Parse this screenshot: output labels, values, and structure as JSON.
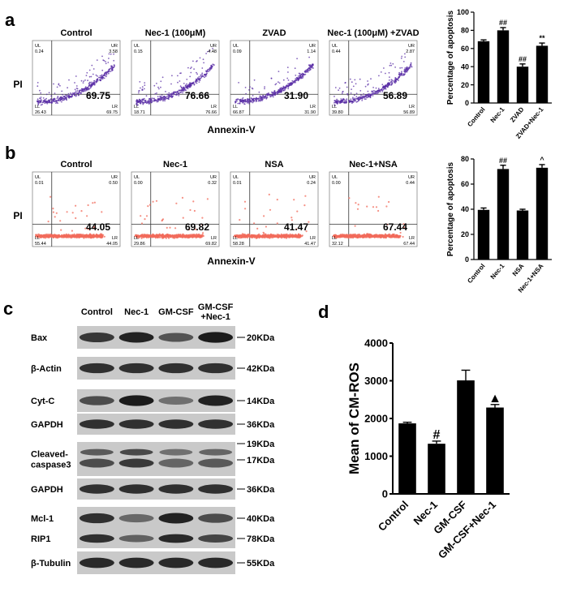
{
  "panels": {
    "a": {
      "letter": "a",
      "flow": {
        "titles": [
          "Control",
          "Nec-1 (100μM)",
          "ZVAD",
          "Nec-1 (100μM) +ZVAD"
        ],
        "ul": [
          "0.24",
          "0.15",
          "0.09",
          "0.44"
        ],
        "ur": [
          "3.58",
          "4.48",
          "1.14",
          "2.87"
        ],
        "ll": [
          "26.43",
          "18.71",
          "66.87",
          "39.80"
        ],
        "lr": [
          "69.75",
          "76.66",
          "31.90",
          "56.89"
        ],
        "big": [
          "69.75",
          "76.66",
          "31.90",
          "56.89"
        ],
        "dot_color": "#5a2ea6",
        "ylabel": "PI",
        "xlabel": "Annexin-V",
        "ul_label": "UL",
        "ur_label": "UR",
        "ll_label": "LL",
        "lr_label": "LR"
      }
    },
    "b": {
      "letter": "b",
      "flow": {
        "titles": [
          "Control",
          "Nec-1",
          "NSA",
          "Nec-1+NSA"
        ],
        "ul": [
          "0.01",
          "0.00",
          "0.01",
          "0.00"
        ],
        "ur": [
          "0.50",
          "0.32",
          "0.24",
          "0.44"
        ],
        "ll": [
          "55.44",
          "29.86",
          "58.28",
          "32.12"
        ],
        "lr": [
          "44.05",
          "69.82",
          "41.47",
          "67.44"
        ],
        "big": [
          "44.05",
          "69.82",
          "41.47",
          "67.44"
        ],
        "dot_color": "#f26b5b",
        "ylabel": "PI",
        "xlabel": "Annexin-V",
        "ul_label": "UL",
        "ur_label": "UR",
        "ll_label": "LL",
        "lr_label": "LR"
      }
    },
    "c": {
      "letter": "c",
      "lanes": [
        "Control",
        "Nec-1",
        "GM-CSF",
        "GM-CSF\n+Nec-1"
      ],
      "blots": [
        {
          "label": "Bax",
          "size": "20KDa",
          "intensity": [
            0.75,
            0.9,
            0.55,
            0.95
          ]
        },
        {
          "label": "β-Actin",
          "size": "42KDa",
          "intensity": [
            0.8,
            0.8,
            0.8,
            0.8
          ]
        },
        {
          "label": "Cyt-C",
          "size": "14KDa",
          "intensity": [
            0.6,
            0.95,
            0.35,
            0.9
          ]
        },
        {
          "label": "GAPDH",
          "size": "36KDa",
          "intensity": [
            0.8,
            0.8,
            0.8,
            0.8
          ]
        },
        {
          "label": "Cleaved-\ncaspase3",
          "size": "19KDa\n17KDa",
          "intensity": [
            0.7,
            0.85,
            0.5,
            0.6
          ],
          "tall": true
        },
        {
          "label": "GAPDH",
          "size": "36KDa",
          "intensity": [
            0.8,
            0.8,
            0.8,
            0.8
          ]
        },
        {
          "label": "Mcl-1",
          "size": "40KDa",
          "intensity": [
            0.8,
            0.4,
            0.9,
            0.6
          ]
        },
        {
          "label": "RIP1",
          "size": "78KDa",
          "intensity": [
            0.8,
            0.45,
            0.85,
            0.65
          ]
        },
        {
          "label": "β-Tubulin",
          "size": "55KDa",
          "intensity": [
            0.85,
            0.85,
            0.85,
            0.85
          ]
        }
      ]
    },
    "d": {
      "letter": "d"
    }
  },
  "chart_data": [
    {
      "type": "bar",
      "panel": "a",
      "categories": [
        "Control",
        "Nec-1",
        "ZVAD",
        "ZVAD+Nec-1"
      ],
      "values": [
        68,
        80,
        40,
        63
      ],
      "errors": [
        1.5,
        3,
        3,
        3
      ],
      "annotations": [
        "",
        "##",
        "##",
        "**"
      ],
      "ylabel": "Percentage of apoptosis",
      "ylim": [
        0,
        100
      ],
      "yticks": [
        0,
        20,
        40,
        60,
        80,
        100
      ]
    },
    {
      "type": "bar",
      "panel": "b",
      "categories": [
        "Control",
        "Nec-1",
        "NSA",
        "Nec-1+NSA"
      ],
      "values": [
        39.5,
        72,
        39,
        73
      ],
      "errors": [
        1.5,
        3,
        1,
        2.5
      ],
      "annotations": [
        "",
        "##",
        "",
        "^"
      ],
      "ylabel": "Percentage of apoptosis",
      "ylim": [
        0,
        80
      ],
      "yticks": [
        0,
        20,
        40,
        60,
        80
      ]
    },
    {
      "type": "bar",
      "panel": "d",
      "categories": [
        "Control",
        "Nec-1",
        "GM-CSF",
        "GM-CSF+Nec-1"
      ],
      "values": [
        1870,
        1330,
        3010,
        2290
      ],
      "errors": [
        30,
        70,
        270,
        80
      ],
      "annotations": [
        "",
        "#",
        "",
        "▲"
      ],
      "ylabel": "Mean of CM-ROS",
      "ylim": [
        0,
        4000
      ],
      "yticks": [
        0,
        1000,
        2000,
        3000,
        4000
      ]
    }
  ]
}
